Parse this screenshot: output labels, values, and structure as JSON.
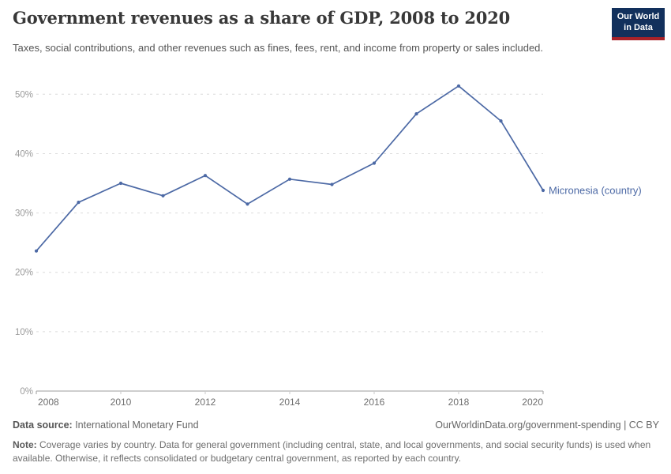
{
  "header": {
    "title": "Government revenues as a share of GDP, 2008 to 2020",
    "subtitle": "Taxes, social contributions, and other revenues such as fines, fees, rent, and income from property or sales included."
  },
  "logo": {
    "line1": "Our World",
    "line2": "in Data",
    "bg_color": "#12305c",
    "bar_color": "#a82229",
    "text_color": "#ffffff"
  },
  "chart_data": {
    "type": "line",
    "title": "Government revenues as a share of GDP, 2008 to 2020",
    "xlabel": "",
    "ylabel": "",
    "x": [
      2008,
      2009,
      2010,
      2011,
      2012,
      2013,
      2014,
      2015,
      2016,
      2017,
      2018,
      2019,
      2020
    ],
    "series": [
      {
        "name": "Micronesia (country)",
        "color": "#4c69a5",
        "values": [
          23.6,
          31.8,
          35.0,
          32.9,
          36.3,
          31.5,
          35.7,
          34.8,
          38.4,
          46.7,
          51.4,
          45.5,
          33.8
        ]
      }
    ],
    "xlim": [
      2008,
      2020
    ],
    "ylim": [
      0,
      53
    ],
    "xticks": [
      "2008",
      "2010",
      "2012",
      "2014",
      "2016",
      "2018",
      "2020"
    ],
    "yticks": [
      0,
      10,
      20,
      30,
      40,
      50
    ],
    "ytick_labels": [
      "0%",
      "10%",
      "20%",
      "30%",
      "40%",
      "50%"
    ],
    "grid": "horizontal-dashed",
    "legend_position": "end-of-line",
    "marker": "dot"
  },
  "colors": {
    "line": "#4c69a5",
    "grid": "#dcdcdc",
    "axis": "#9e9e9e",
    "inner_tick": "#c9c9c9",
    "ytick_label": "#9a9a9a",
    "xtick_label": "#6e6e6e"
  },
  "footer": {
    "datasource_label": "Data source:",
    "datasource_value": " International Monetary Fund",
    "citation": "OurWorldinData.org/government-spending | CC BY",
    "note_label": "Note:",
    "note_text": " Coverage varies by country. Data for general government (including central, state, and local governments, and social security funds) is used when available. Otherwise, it reflects consolidated or budgetary central government, as reported by each country."
  }
}
